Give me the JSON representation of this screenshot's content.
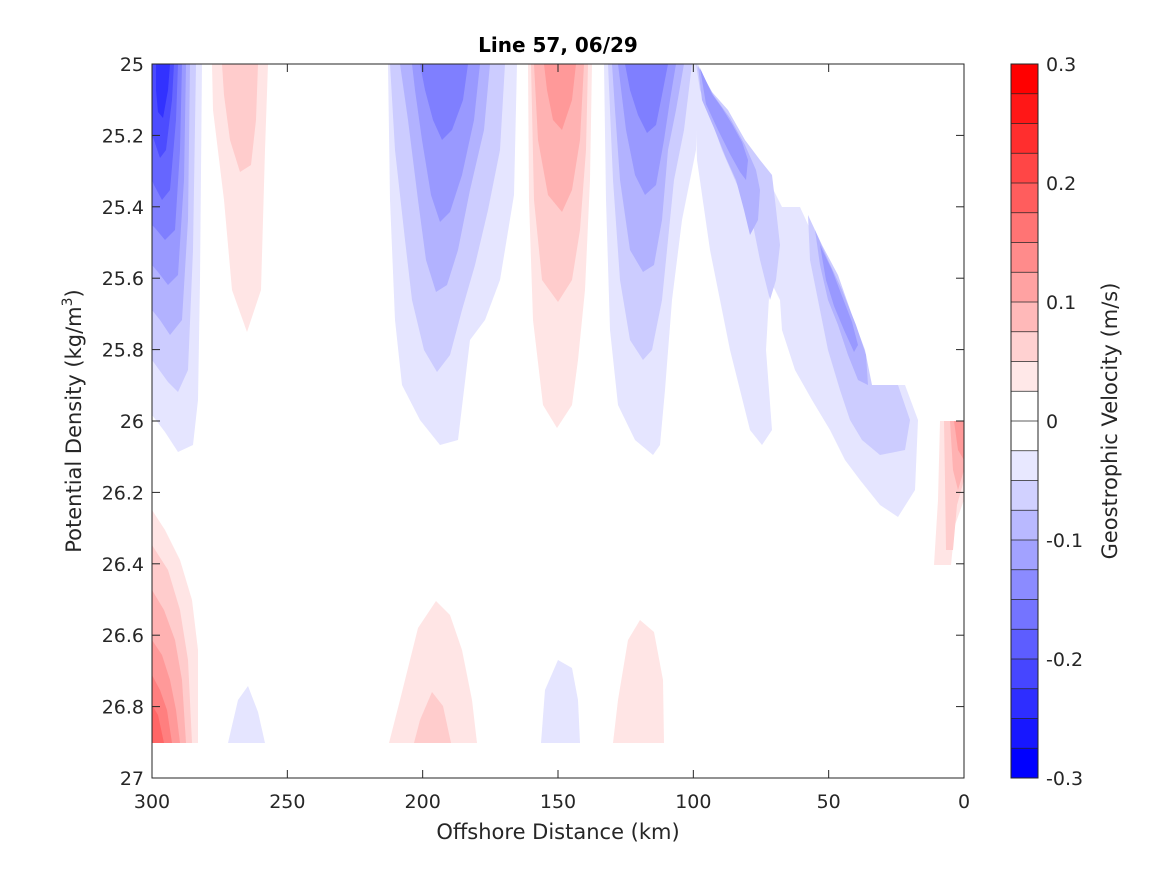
{
  "chart_data": {
    "type": "contour",
    "title": "Line 57, 06/29",
    "xlabel": "Offshore Distance (km)",
    "ylabel_main": "Potential Density (kg/m",
    "ylabel_sup": "3",
    "ylabel_close": ")",
    "xlim": [
      300,
      0
    ],
    "ylim": [
      25,
      27
    ],
    "x_reversed": true,
    "y_reversed": true,
    "xticks": [
      300,
      250,
      200,
      150,
      100,
      50,
      0
    ],
    "yticks": [
      25,
      25.2,
      25.4,
      25.6,
      25.8,
      26,
      26.2,
      26.4,
      26.6,
      26.8,
      27
    ],
    "xtick_labels": [
      "300",
      "250",
      "200",
      "150",
      "100",
      "50",
      "0"
    ],
    "ytick_labels": [
      "25",
      "25.2",
      "25.4",
      "25.6",
      "25.8",
      "26",
      "26.2",
      "26.4",
      "26.6",
      "26.8",
      "27"
    ],
    "colorbar": {
      "label": "Geostrophic Velocity (m/s)",
      "range": [
        -0.3,
        0.3
      ],
      "ticks": [
        -0.3,
        -0.2,
        -0.1,
        0,
        0.1,
        0.2,
        0.3
      ],
      "tick_labels": [
        "-0.3",
        "-0.2",
        "-0.1",
        "0",
        "0.1",
        "0.2",
        "0.3"
      ],
      "levels": 24,
      "negative_color": "#0000ff",
      "positive_color": "#ff0000",
      "zero_color": "#ffffff"
    },
    "features": [
      {
        "sign": "negative",
        "peak": -0.26,
        "x_range": [
          300,
          282
        ],
        "density_range": [
          25.0,
          26.05
        ]
      },
      {
        "sign": "positive",
        "peak": 0.04,
        "x_range": [
          275,
          258
        ],
        "density_range": [
          25.0,
          25.75
        ]
      },
      {
        "sign": "negative",
        "peak": -0.15,
        "x_range": [
          212,
          168
        ],
        "density_range": [
          25.0,
          26.05
        ]
      },
      {
        "sign": "positive",
        "peak": 0.13,
        "x_range": [
          162,
          138
        ],
        "density_range": [
          25.0,
          26.0
        ]
      },
      {
        "sign": "negative",
        "peak": -0.16,
        "x_range": [
          135,
          98
        ],
        "density_range": [
          25.0,
          26.08
        ]
      },
      {
        "sign": "negative",
        "peak": -0.12,
        "x_range": [
          100,
          15
        ],
        "density_range": [
          25.0,
          26.27
        ]
      },
      {
        "sign": "positive",
        "peak": 0.1,
        "x_range": [
          11,
          0
        ],
        "density_range": [
          26.0,
          26.4
        ]
      },
      {
        "sign": "positive",
        "peak": 0.16,
        "x_range": [
          300,
          283
        ],
        "density_range": [
          26.25,
          26.9
        ]
      },
      {
        "sign": "negative",
        "peak": -0.03,
        "x_range": [
          272,
          258
        ],
        "density_range": [
          26.75,
          26.9
        ]
      },
      {
        "sign": "positive",
        "peak": 0.06,
        "x_range": [
          212,
          180
        ],
        "density_range": [
          26.5,
          26.9
        ]
      },
      {
        "sign": "negative",
        "peak": -0.03,
        "x_range": [
          156,
          142
        ],
        "density_range": [
          26.65,
          26.9
        ]
      },
      {
        "sign": "positive",
        "peak": 0.04,
        "x_range": [
          129,
          110
        ],
        "density_range": [
          26.55,
          26.9
        ]
      }
    ]
  }
}
